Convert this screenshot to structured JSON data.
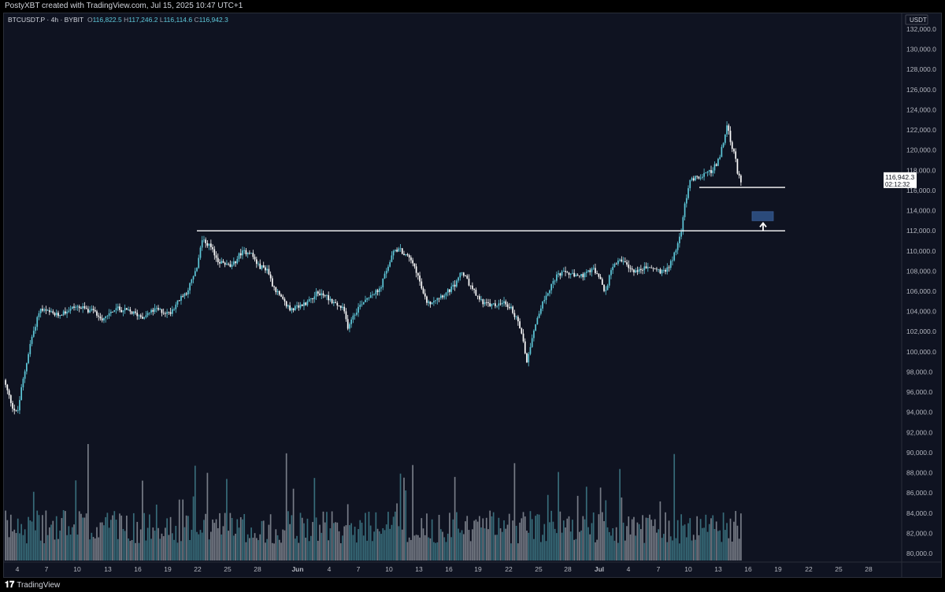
{
  "header": {
    "attribution": "PostyXBT created with TradingView.com, Jul 15, 2025 10:47 UTC+1"
  },
  "legend": {
    "symbol": "BTCUSDT.P · 4h · BYBIT",
    "o_label": "O",
    "o_value": "116,822.5",
    "h_label": "H",
    "h_value": "117,246.2",
    "l_label": "L",
    "l_value": "116,114.6",
    "c_label": "C",
    "c_value": "116,942.3"
  },
  "axis": {
    "currency": "USDT",
    "current_price": "116,942.3",
    "countdown": "02:12:32"
  },
  "footer": {
    "brand": "TradingView"
  },
  "colors": {
    "background": "#0f1321",
    "up_candle": "#5ec8d9",
    "down_candle": "#ffffff",
    "line": "#ffffff",
    "target_box": "#2b4a7a"
  },
  "chart_data": {
    "type": "candlestick",
    "timeframe": "4h",
    "ylim": [
      79000,
      133000
    ],
    "y_ticks": [
      80000,
      82000,
      84000,
      86000,
      88000,
      90000,
      92000,
      94000,
      96000,
      98000,
      100000,
      102000,
      104000,
      106000,
      108000,
      110000,
      112000,
      114000,
      116000,
      118000,
      120000,
      122000,
      124000,
      126000,
      128000,
      130000,
      132000
    ],
    "y_tick_labels": [
      "80,000.0",
      "82,000.0",
      "84,000.0",
      "86,000.0",
      "88,000.0",
      "90,000.0",
      "92,000.0",
      "94,000.0",
      "96,000.0",
      "98,000.0",
      "100,000.0",
      "102,000.0",
      "104,000.0",
      "106,000.0",
      "108,000.0",
      "110,000.0",
      "112,000.0",
      "114,000.0",
      "116,000.0",
      "118,000.0",
      "120,000.0",
      "122,000.0",
      "124,000.0",
      "126,000.0",
      "128,000.0",
      "130,000.0",
      "132,000.0"
    ],
    "x_tick_labels": [
      "4",
      "7",
      "10",
      "13",
      "16",
      "19",
      "22",
      "25",
      "28",
      "Jun",
      "4",
      "7",
      "10",
      "13",
      "16",
      "19",
      "22",
      "25",
      "28",
      "Jul",
      "4",
      "7",
      "10",
      "13",
      "16",
      "19",
      "22",
      "25",
      "28"
    ],
    "price_path": [
      [
        0,
        97200
      ],
      [
        0.05,
        95800
      ],
      [
        0.1,
        94500
      ],
      [
        0.15,
        93800
      ],
      [
        0.2,
        96500
      ],
      [
        0.3,
        101000
      ],
      [
        0.4,
        104200
      ],
      [
        0.6,
        103600
      ],
      [
        0.8,
        104500
      ],
      [
        1.0,
        104000
      ],
      [
        1.1,
        103300
      ],
      [
        1.25,
        104300
      ],
      [
        1.4,
        104000
      ],
      [
        1.55,
        103500
      ],
      [
        1.7,
        104200
      ],
      [
        1.85,
        103800
      ],
      [
        1.95,
        105000
      ],
      [
        2.05,
        106000
      ],
      [
        2.15,
        108000
      ],
      [
        2.22,
        111200
      ],
      [
        2.3,
        110500
      ],
      [
        2.4,
        109000
      ],
      [
        2.55,
        108400
      ],
      [
        2.65,
        109800
      ],
      [
        2.75,
        110000
      ],
      [
        2.85,
        108500
      ],
      [
        2.95,
        108200
      ],
      [
        3.0,
        106800
      ],
      [
        3.1,
        105300
      ],
      [
        3.2,
        104200
      ],
      [
        3.3,
        104400
      ],
      [
        3.4,
        105000
      ],
      [
        3.5,
        105800
      ],
      [
        3.6,
        105600
      ],
      [
        3.7,
        104800
      ],
      [
        3.8,
        104200
      ],
      [
        3.85,
        102500
      ],
      [
        3.9,
        103500
      ],
      [
        4.0,
        104800
      ],
      [
        4.1,
        105700
      ],
      [
        4.2,
        106000
      ],
      [
        4.3,
        108500
      ],
      [
        4.38,
        110200
      ],
      [
        4.45,
        110000
      ],
      [
        4.55,
        109200
      ],
      [
        4.62,
        108000
      ],
      [
        4.7,
        105500
      ],
      [
        4.75,
        104800
      ],
      [
        4.85,
        105400
      ],
      [
        4.95,
        105800
      ],
      [
        5.05,
        106600
      ],
      [
        5.12,
        108000
      ],
      [
        5.2,
        106800
      ],
      [
        5.3,
        105400
      ],
      [
        5.4,
        104700
      ],
      [
        5.5,
        104600
      ],
      [
        5.6,
        104800
      ],
      [
        5.68,
        104300
      ],
      [
        5.75,
        103000
      ],
      [
        5.8,
        101800
      ],
      [
        5.85,
        99000
      ],
      [
        5.9,
        101000
      ],
      [
        5.95,
        102800
      ],
      [
        6.0,
        104200
      ],
      [
        6.1,
        106200
      ],
      [
        6.2,
        107600
      ],
      [
        6.3,
        107900
      ],
      [
        6.4,
        107400
      ],
      [
        6.5,
        107600
      ],
      [
        6.6,
        108200
      ],
      [
        6.68,
        107000
      ],
      [
        6.73,
        105800
      ],
      [
        6.8,
        108400
      ],
      [
        6.9,
        109200
      ],
      [
        7.0,
        108200
      ],
      [
        7.1,
        108000
      ],
      [
        7.2,
        108400
      ],
      [
        7.3,
        108200
      ],
      [
        7.38,
        107800
      ],
      [
        7.45,
        108600
      ],
      [
        7.52,
        110000
      ],
      [
        7.58,
        111800
      ],
      [
        7.62,
        114500
      ],
      [
        7.68,
        117000
      ],
      [
        7.78,
        117400
      ],
      [
        7.9,
        117800
      ],
      [
        7.98,
        118600
      ],
      [
        8.05,
        120500
      ],
      [
        8.1,
        122600
      ],
      [
        8.14,
        120200
      ],
      [
        8.18,
        119500
      ],
      [
        8.22,
        117400
      ],
      [
        8.25,
        116942
      ]
    ],
    "horizontal_levels": [
      {
        "name": "resistance-flipped",
        "price": 112000
      },
      {
        "name": "recent-support",
        "price": 116300
      }
    ],
    "target_zone": {
      "price_low": 113000,
      "price_high": 113900
    }
  }
}
